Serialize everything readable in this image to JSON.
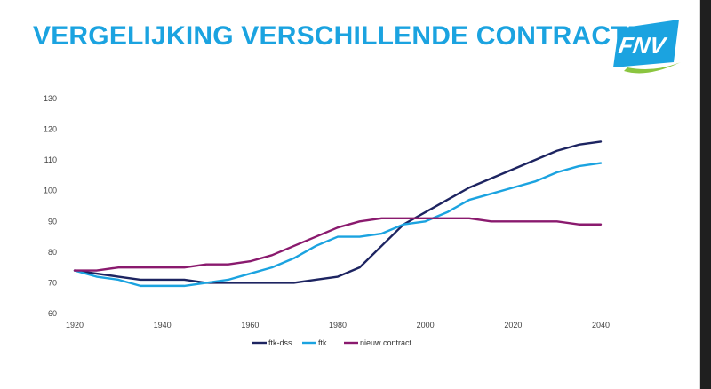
{
  "title": "VERGELIJKING VERSCHILLENDE CONTRACTEN",
  "logo": {
    "text": "FNV",
    "colors": {
      "blue": "#1ba3e0",
      "green": "#8bc53f"
    }
  },
  "chart_data": {
    "type": "line",
    "title": "",
    "xlabel": "",
    "ylabel": "",
    "xlim": [
      1920,
      2040
    ],
    "ylim": [
      60,
      130
    ],
    "xticks": [
      "1920",
      "1940",
      "1960",
      "1980",
      "2000",
      "2020",
      "2040"
    ],
    "yticks": [
      "60",
      "70",
      "80",
      "90",
      "100",
      "110",
      "120",
      "130"
    ],
    "grid": false,
    "legend_position": "bottom",
    "x": [
      1920,
      1925,
      1930,
      1935,
      1940,
      1945,
      1950,
      1955,
      1960,
      1965,
      1970,
      1975,
      1980,
      1985,
      1990,
      1995,
      2000,
      2005,
      2010,
      2015,
      2020,
      2025,
      2030,
      2035,
      2040
    ],
    "series": [
      {
        "name": "ftk-dss",
        "color": "#1d2461",
        "values": [
          74,
          73,
          72,
          71,
          71,
          71,
          70,
          70,
          70,
          70,
          70,
          71,
          72,
          75,
          82,
          89,
          93,
          97,
          101,
          104,
          107,
          110,
          113,
          115,
          116
        ]
      },
      {
        "name": "ftk",
        "color": "#1ba3e0",
        "values": [
          74,
          72,
          71,
          69,
          69,
          69,
          70,
          71,
          73,
          75,
          78,
          82,
          85,
          85,
          86,
          89,
          90,
          93,
          97,
          99,
          101,
          103,
          106,
          108,
          109
        ]
      },
      {
        "name": "nieuw contract",
        "color": "#8a1a6e",
        "values": [
          74,
          74,
          75,
          75,
          75,
          75,
          76,
          76,
          77,
          79,
          82,
          85,
          88,
          90,
          91,
          91,
          91,
          91,
          91,
          90,
          90,
          90,
          90,
          89,
          89
        ]
      }
    ]
  }
}
